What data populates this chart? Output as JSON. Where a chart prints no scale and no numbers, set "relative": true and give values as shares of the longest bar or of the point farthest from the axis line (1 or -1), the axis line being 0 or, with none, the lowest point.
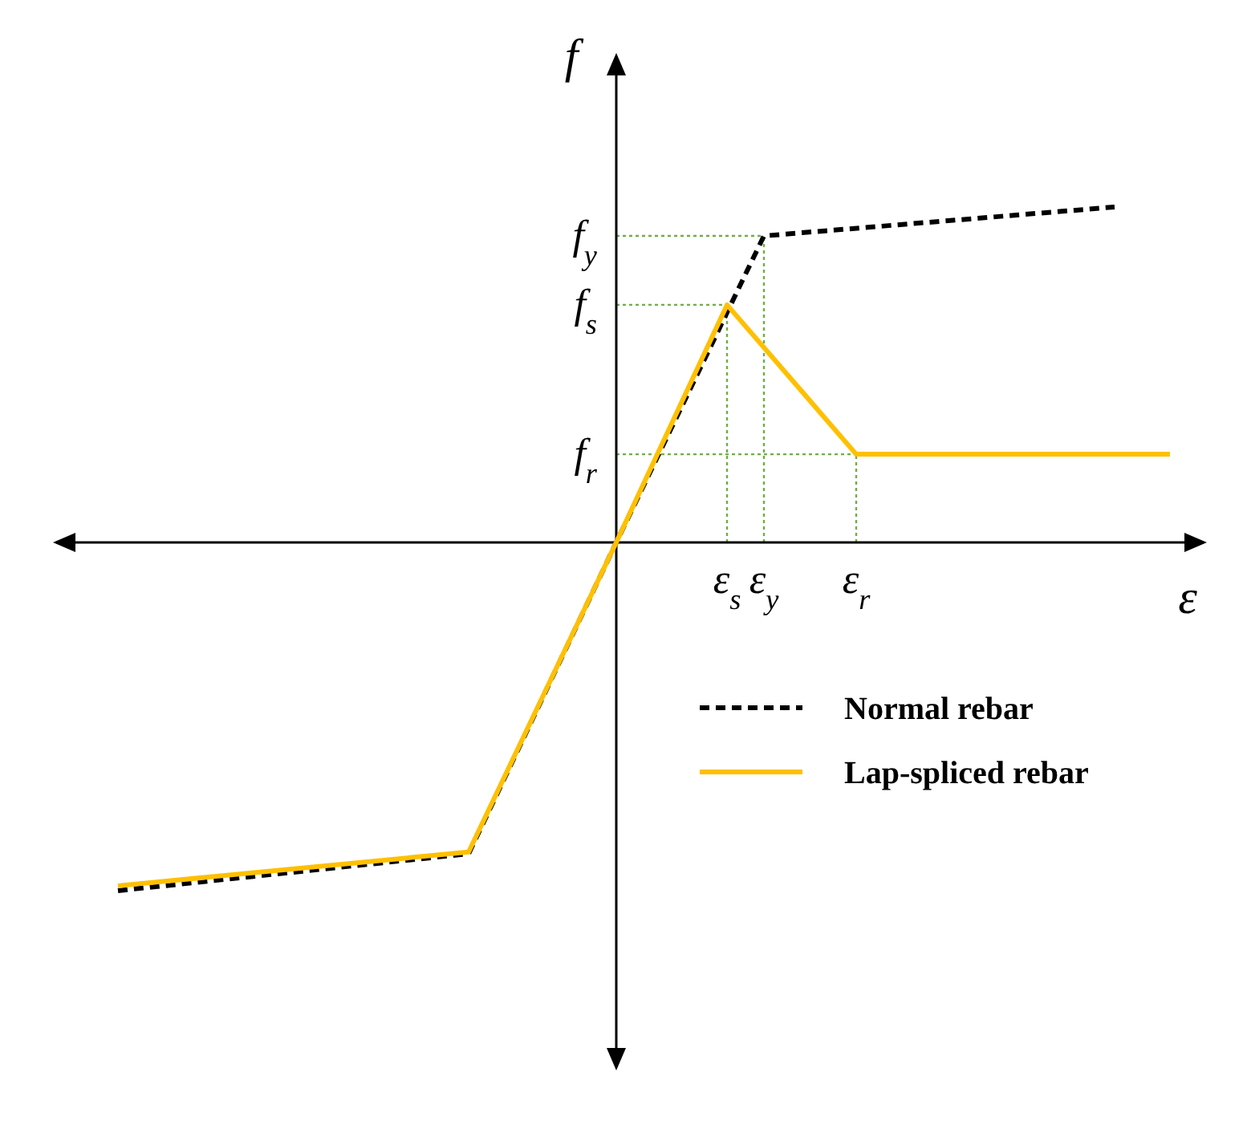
{
  "chart_data": {
    "type": "line",
    "relative": true,
    "xlabel": "ε",
    "ylabel": "f",
    "legend": "bottom right",
    "categories": [
      null,
      null,
      null,
      null,
      null,
      null,
      null,
      null,
      null,
      null,
      null,
      null,
      null,
      null,
      null,
      null,
      null,
      null,
      null,
      null,
      null,
      null,
      null,
      null,
      null,
      null,
      null,
      null,
      null,
      null,
      null,
      null,
      null,
      "ε$_{s}$",
      null,
      "ε$_{y}$",
      null,
      null,
      null,
      null,
      "ε$_{r}$",
      null,
      null,
      null,
      null,
      null,
      null,
      null,
      null,
      null,
      null,
      null,
      null,
      null,
      null,
      null,
      null,
      null
    ],
    "series": [
      {
        "name": "Normal rebar",
        "color": "#000000",
        "line_style": "dashed",
        "values": [
          -1,
          null,
          null,
          null,
          null,
          null,
          null,
          null,
          null,
          null,
          null,
          null,
          null,
          null,
          null,
          null,
          null,
          null,
          null,
          -0.894,
          null,
          null,
          null,
          null,
          null,
          null,
          null,
          0,
          null,
          null,
          null,
          null,
          null,
          null,
          null,
          0.88,
          null,
          null,
          null,
          null,
          null,
          null,
          null,
          null,
          null,
          null,
          null,
          null,
          null,
          null,
          null,
          null,
          null,
          null,
          0.963,
          null,
          null,
          null
        ]
      },
      {
        "name": "Lap-spliced rebar",
        "color": "#ffc000",
        "line_style": "solid",
        "values": [
          -0.986,
          null,
          null,
          null,
          null,
          null,
          null,
          null,
          null,
          null,
          null,
          null,
          null,
          null,
          null,
          null,
          null,
          null,
          null,
          -0.889,
          null,
          null,
          null,
          null,
          null,
          null,
          null,
          0,
          null,
          null,
          null,
          null,
          null,
          0.682,
          null,
          null,
          null,
          null,
          null,
          null,
          0.253,
          null,
          null,
          null,
          null,
          null,
          null,
          null,
          null,
          null,
          null,
          null,
          null,
          null,
          null,
          null,
          null,
          0.253
        ]
      }
    ],
    "ref_lines": [
      {
        "axis": "y",
        "value": 0.88,
        "label": "f$_{y}$",
        "color": "#70ad47",
        "line_style": "dotted"
      },
      {
        "axis": "y",
        "value": 0.682,
        "label": "f$_{s}$",
        "color": "#70ad47",
        "line_style": "dotted"
      },
      {
        "axis": "y",
        "value": 0.253,
        "label": "f$_{r}$",
        "color": "#70ad47",
        "line_style": "dotted"
      },
      {
        "axis": "x",
        "value": "ε$_{s}$",
        "color": "#70ad47",
        "line_style": "dotted"
      },
      {
        "axis": "x",
        "value": "ε$_{y}$",
        "color": "#70ad47",
        "line_style": "dotted"
      },
      {
        "axis": "x",
        "value": "ε$_{r}$",
        "color": "#70ad47",
        "line_style": "dotted"
      }
    ]
  }
}
